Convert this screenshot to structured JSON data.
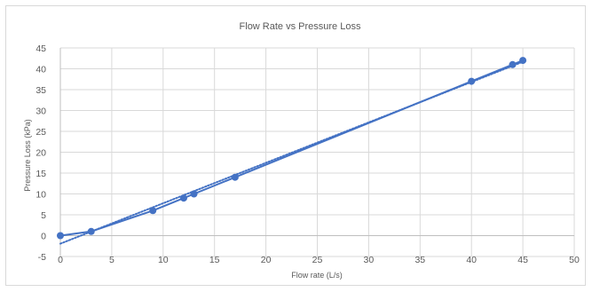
{
  "chart_data": {
    "type": "scatter",
    "title": "Flow Rate vs Pressure Loss",
    "xlabel": "Flow rate (L/s)",
    "ylabel": "Pressure Loss (kPa)",
    "xlim": [
      0,
      50
    ],
    "ylim": [
      -5,
      45
    ],
    "x_ticks": [
      "0",
      "5",
      "10",
      "15",
      "20",
      "25",
      "30",
      "35",
      "40",
      "45",
      "50"
    ],
    "y_ticks": [
      "-5",
      "0",
      "5",
      "10",
      "15",
      "20",
      "25",
      "30",
      "35",
      "40",
      "45"
    ],
    "grid": true,
    "trendline": "dotted",
    "series": [
      {
        "x": [
          0,
          3,
          9,
          12,
          13,
          17,
          40,
          44,
          45
        ],
        "y": [
          0,
          1,
          6,
          9,
          10,
          14,
          37,
          41,
          42
        ]
      }
    ],
    "colors": {
      "series": "#4472c4",
      "grid": "#d9d9d9",
      "axis": "#bfbfbf",
      "text": "#595959"
    }
  }
}
